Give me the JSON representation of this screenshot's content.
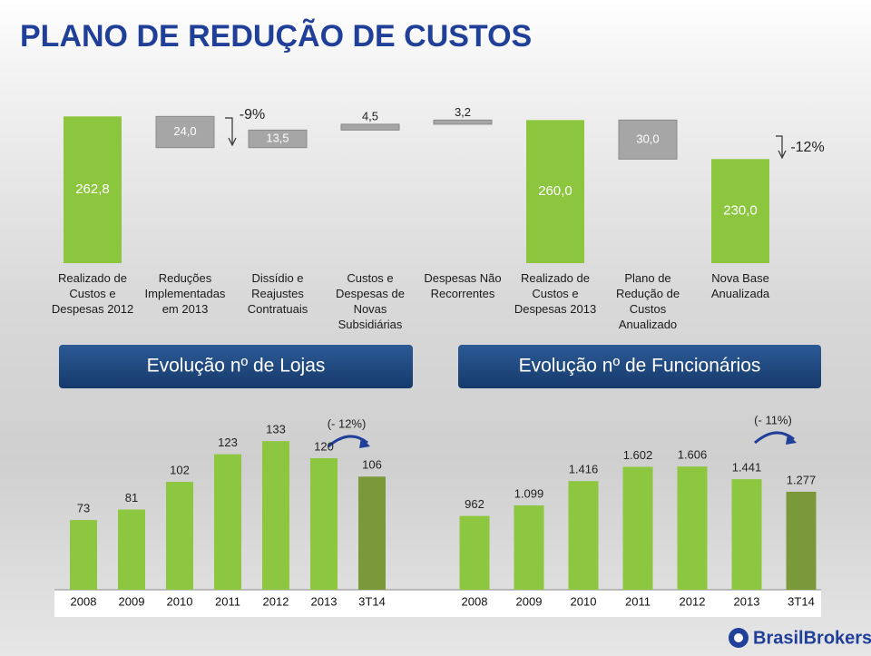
{
  "title": "PLANO DE REDUÇÃO DE CUSTOS",
  "logo": "BrasilBrokers",
  "chart_data": [
    {
      "type": "waterfall",
      "categories": [
        "Realizado de Custos e Despesas 2012",
        "Reduções Implementadas em 2013",
        "Dissídio e Reajustes Contratuais",
        "Custos e Despesas de Novas Subsidiárias",
        "Despesas Não Recorrentes",
        "Realizado de Custos e Despesas 2013",
        "Plano de Redução de Custos Anualizado",
        "Nova Base Anualizada"
      ],
      "values": [
        262.8,
        24.0,
        13.5,
        4.5,
        3.2,
        260.0,
        30.0,
        230.0
      ],
      "value_labels": [
        "262,8",
        "24,0",
        "13,5",
        "4,5",
        "3,2",
        "260,0",
        "30,0",
        "230,0"
      ],
      "measures": [
        "total",
        "decrease",
        "increase",
        "increase",
        "increase",
        "total",
        "decrease",
        "total"
      ],
      "total_color": "#8cc63e",
      "step_color": "#a6a6a6",
      "annotations": [
        "-9%",
        "-12%"
      ],
      "ylim": [
        150,
        270
      ]
    },
    {
      "type": "bar",
      "title": "Evolução nº de Lojas",
      "categories": [
        "2008",
        "2009",
        "2010",
        "2011",
        "2012",
        "2013",
        "3T14"
      ],
      "values": [
        73,
        81,
        102,
        123,
        133,
        120,
        106
      ],
      "colors": [
        "#8dc63f",
        "#8dc63f",
        "#8dc63f",
        "#8dc63f",
        "#8dc63f",
        "#8dc63f",
        "#7a9a3a"
      ],
      "annotations": [
        "(- 12%)"
      ],
      "ylim": [
        20,
        160
      ]
    },
    {
      "type": "bar",
      "title": "Evolução nº de Funcionários",
      "categories": [
        "2008",
        "2009",
        "2010",
        "2011",
        "2012",
        "2013",
        "3T14"
      ],
      "values": [
        962,
        1099,
        1416,
        1602,
        1606,
        1441,
        1277
      ],
      "value_labels": [
        "962",
        "1.099",
        "1.416",
        "1.602",
        "1.606",
        "1.441",
        "1.277"
      ],
      "colors": [
        "#8dc63f",
        "#8dc63f",
        "#8dc63f",
        "#8dc63f",
        "#8dc63f",
        "#8dc63f",
        "#7a9a3a"
      ],
      "annotations": [
        "(- 11%)"
      ],
      "ylim": [
        0,
        2400
      ]
    }
  ]
}
